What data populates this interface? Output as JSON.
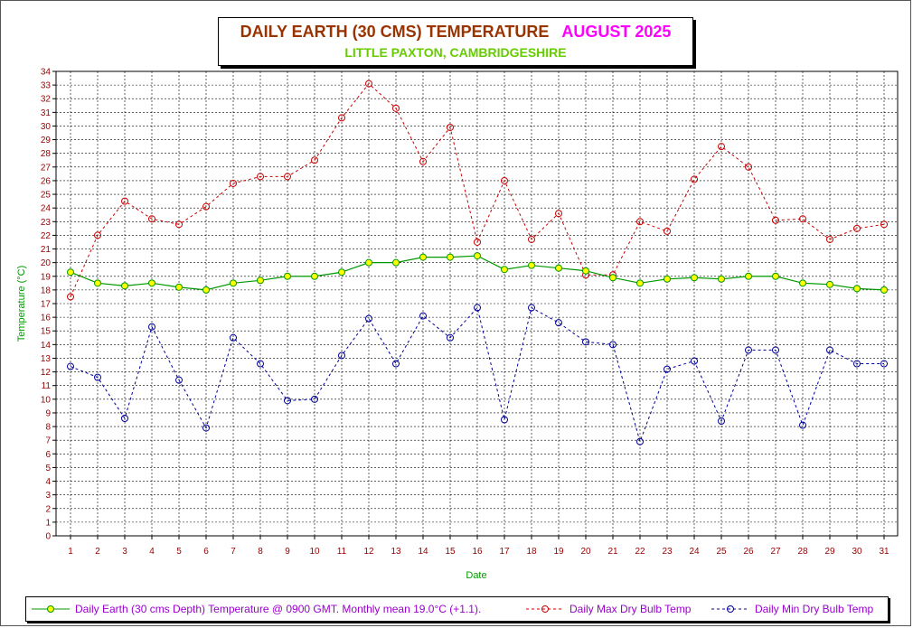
{
  "title": {
    "main": "DAILY EARTH (30 CMS) TEMPERATURE",
    "month": "AUGUST 2025",
    "subtitle": "LITTLE PAXTON, CAMBRIDGESHIRE"
  },
  "colors": {
    "title_main": "#993300",
    "title_month": "#ff00ff",
    "subtitle": "#66cc00",
    "earth_line": "#009900",
    "earth_marker": "#ffff00",
    "max_line": "#cc0000",
    "min_line": "#000099",
    "axis_label": "#009900",
    "tick_label": "#990000",
    "grid": "#000000"
  },
  "chart_data": {
    "type": "line",
    "xlabel": "Date",
    "ylabel": "Temperature (°C)",
    "ylim": [
      0,
      34
    ],
    "xlim": [
      1,
      31
    ],
    "grid": true,
    "legend_position": "bottom",
    "x": [
      1,
      2,
      3,
      4,
      5,
      6,
      7,
      8,
      9,
      10,
      11,
      12,
      13,
      14,
      15,
      16,
      17,
      18,
      19,
      20,
      21,
      22,
      23,
      24,
      25,
      26,
      27,
      28,
      29,
      30,
      31
    ],
    "series": [
      {
        "name": "Daily Earth (30 cms Depth) Temperature @ 0900 GMT. Monthly mean 19.0°C (+1.1).",
        "style": "solid",
        "marker": "filled-circle",
        "values": [
          19.3,
          18.5,
          18.3,
          18.5,
          18.2,
          18.0,
          18.5,
          18.7,
          19.0,
          19.0,
          19.3,
          20.0,
          20.0,
          20.4,
          20.4,
          20.5,
          19.5,
          19.8,
          19.6,
          19.4,
          18.9,
          18.5,
          18.8,
          18.9,
          18.8,
          19.0,
          19.0,
          18.5,
          18.4,
          18.1,
          18.0
        ]
      },
      {
        "name": "Daily Max Dry Bulb Temp",
        "style": "dashed",
        "marker": "open-circle",
        "values": [
          17.5,
          22.0,
          24.5,
          23.2,
          22.8,
          24.1,
          25.8,
          26.3,
          26.3,
          27.5,
          30.6,
          33.1,
          31.3,
          27.4,
          29.9,
          21.5,
          26.0,
          21.7,
          23.6,
          19.1,
          19.1,
          23.0,
          22.3,
          26.1,
          28.5,
          27.0,
          23.1,
          23.2,
          21.7,
          22.5,
          22.8
        ]
      },
      {
        "name": "Daily Min Dry Bulb Temp",
        "style": "dashed",
        "marker": "open-circle",
        "values": [
          12.4,
          11.6,
          8.6,
          15.3,
          11.4,
          7.9,
          14.5,
          12.6,
          9.9,
          10.0,
          13.2,
          15.9,
          12.6,
          16.1,
          14.5,
          16.7,
          8.5,
          16.7,
          15.6,
          14.2,
          14.0,
          6.9,
          12.2,
          12.8,
          8.4,
          13.6,
          13.6,
          8.1,
          13.6,
          12.6,
          12.6
        ]
      }
    ]
  }
}
